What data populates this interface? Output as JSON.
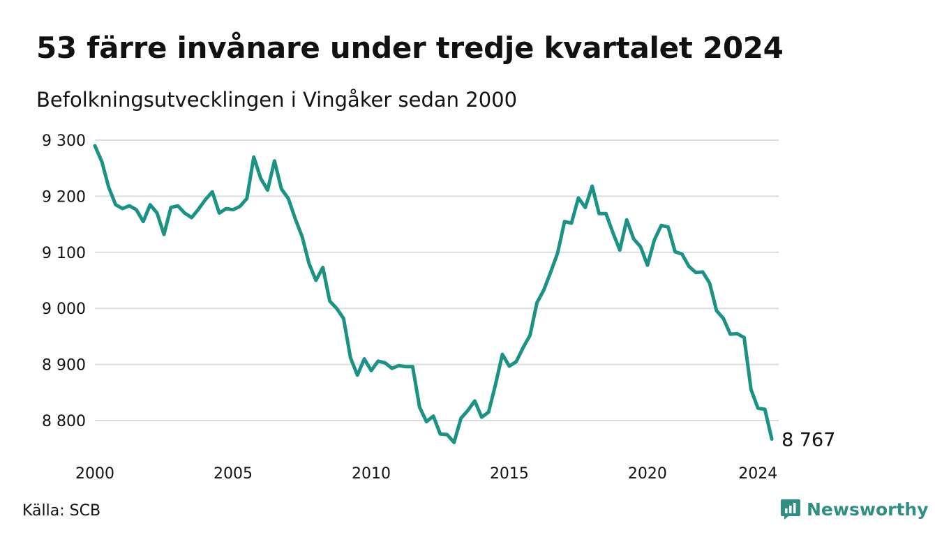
{
  "title": "53 färre invånare under tredje kvartalet 2024",
  "subtitle": "Befolkningsutvecklingen i Vingåker sedan 2000",
  "source": "Källa: SCB",
  "brand": {
    "name": "Newsworthy",
    "icon": "newsworthy-logo-icon",
    "color": "#2f8f83"
  },
  "chart_data": {
    "type": "line",
    "title": "53 färre invånare under tredje kvartalet 2024",
    "subtitle": "Befolkningsutvecklingen i Vingåker sedan 2000",
    "xlabel": "",
    "ylabel": "",
    "grid": true,
    "line_color": "#1a9384",
    "ylim": [
      8760,
      9300
    ],
    "xlim": [
      2000,
      2024.75
    ],
    "y_ticks": [
      9300,
      9200,
      9100,
      9000,
      8900,
      8800
    ],
    "y_tick_labels": [
      "9 300",
      "9 200",
      "9 100",
      "9 000",
      "8 900",
      "8 800"
    ],
    "x_ticks": [
      2000,
      2005,
      2010,
      2015,
      2020,
      2024
    ],
    "x_tick_labels": [
      "2000",
      "2005",
      "2010",
      "2015",
      "2020",
      "2024"
    ],
    "end_label": "8 767",
    "series": [
      {
        "x": [
          2000.0,
          2000.25,
          2000.5,
          2000.75,
          2001.0,
          2001.25,
          2001.5,
          2001.75,
          2002.0,
          2002.25,
          2002.5,
          2002.75,
          2003.0,
          2003.25,
          2003.5,
          2003.75,
          2004.0,
          2004.25,
          2004.5,
          2004.75,
          2005.0,
          2005.25,
          2005.5,
          2005.75,
          2006.0,
          2006.25,
          2006.5,
          2006.75,
          2007.0,
          2007.25,
          2007.5,
          2007.75,
          2008.0,
          2008.25,
          2008.5,
          2008.75,
          2009.0,
          2009.25,
          2009.5,
          2009.75,
          2010.0,
          2010.25,
          2010.5,
          2010.75,
          2011.0,
          2011.25,
          2011.5,
          2011.75,
          2012.0,
          2012.25,
          2012.5,
          2012.75,
          2013.0,
          2013.25,
          2013.5,
          2013.75,
          2014.0,
          2014.25,
          2014.5,
          2014.75,
          2015.0,
          2015.25,
          2015.5,
          2015.75,
          2016.0,
          2016.25,
          2016.5,
          2016.75,
          2017.0,
          2017.25,
          2017.5,
          2017.75,
          2018.0,
          2018.25,
          2018.5,
          2018.75,
          2019.0,
          2019.25,
          2019.5,
          2019.75,
          2020.0,
          2020.25,
          2020.5,
          2020.75,
          2021.0,
          2021.25,
          2021.5,
          2021.75,
          2022.0,
          2022.25,
          2022.5,
          2022.75,
          2023.0,
          2023.25,
          2023.5,
          2023.75,
          2024.0,
          2024.25,
          2024.5
        ],
        "values": [
          9290,
          9262,
          9216,
          9185,
          9178,
          9183,
          9176,
          9155,
          9185,
          9170,
          9132,
          9180,
          9183,
          9170,
          9162,
          9177,
          9194,
          9208,
          9170,
          9178,
          9176,
          9182,
          9196,
          9270,
          9232,
          9211,
          9263,
          9213,
          9196,
          9160,
          9128,
          9080,
          9050,
          9073,
          9013,
          9000,
          8982,
          8912,
          8881,
          8910,
          8889,
          8906,
          8903,
          8893,
          8898,
          8896,
          8896,
          8824,
          8798,
          8808,
          8776,
          8775,
          8761,
          8804,
          8818,
          8835,
          8806,
          8815,
          8864,
          8918,
          8897,
          8905,
          8930,
          8952,
          9010,
          9033,
          9065,
          9099,
          9155,
          9152,
          9197,
          9180,
          9218,
          9169,
          9169,
          9135,
          9104,
          9158,
          9124,
          9110,
          9077,
          9122,
          9148,
          9145,
          9101,
          9097,
          9075,
          9064,
          9065,
          9045,
          8996,
          8982,
          8954,
          8955,
          8948,
          8855,
          8822,
          8820,
          8767
        ]
      }
    ]
  }
}
